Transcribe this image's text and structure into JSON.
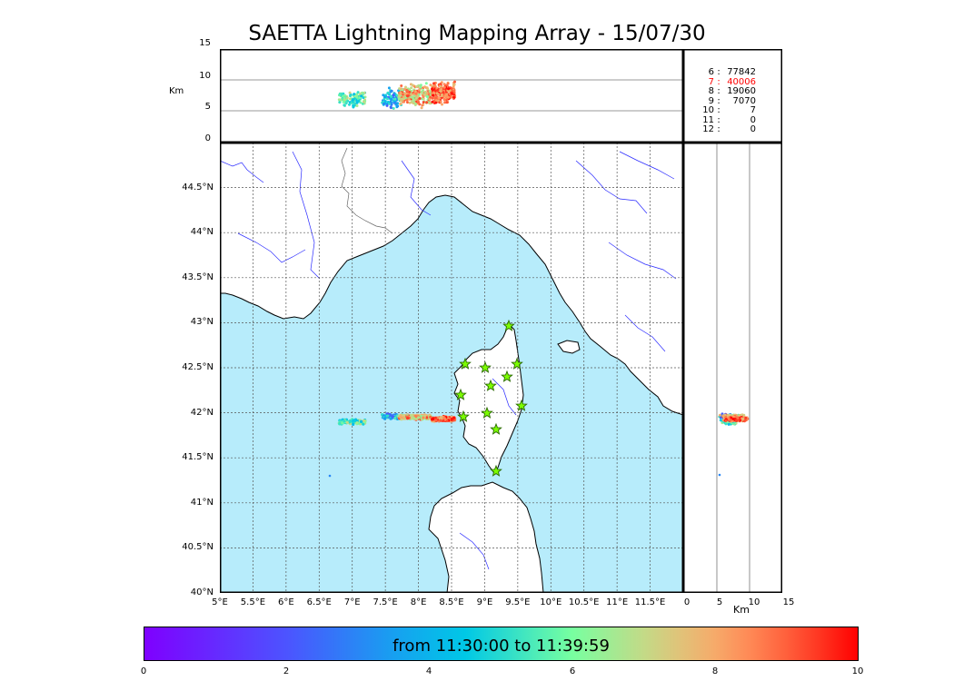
{
  "title": "SAETTA Lightning Mapping Array - 15/07/30",
  "top_panel": {
    "ylabel": "Km",
    "yticks": [
      "15",
      "10",
      "5",
      "0"
    ]
  },
  "right_panel": {
    "xlabel": "Km",
    "xticks": [
      "0",
      "5",
      "10",
      "15"
    ]
  },
  "map": {
    "lon_ticks": [
      "5°E",
      "5.5°E",
      "6°E",
      "6.5°E",
      "7°E",
      "7.5°E",
      "8°E",
      "8.5°E",
      "9°E",
      "9.5°E",
      "10°E",
      "10.5°E",
      "11°E",
      "11.5°E"
    ],
    "lat_ticks": [
      "44.5°N",
      "44°N",
      "43.5°N",
      "43°N",
      "42.5°N",
      "42°N",
      "41.5°N",
      "41°N",
      "40.5°N",
      "40°N"
    ],
    "colors": {
      "sea": "#b7ecfb",
      "land": "#ffffff",
      "river": "#2a2aff",
      "grid": "#555555",
      "station_fill": "#7cfc00",
      "station_stroke": "#2a6a00"
    },
    "stations_label": "LMA stations",
    "station_count": 12
  },
  "stats": [
    {
      "flash": "6",
      "count": "77842",
      "color": "#000000"
    },
    {
      "flash": "7",
      "count": "40006",
      "color": "#ff0000"
    },
    {
      "flash": "8",
      "count": "19060",
      "color": "#000000"
    },
    {
      "flash": "9",
      "count": "7070",
      "color": "#000000"
    },
    {
      "flash": "10",
      "count": "7",
      "color": "#000000"
    },
    {
      "flash": "11",
      "count": "0",
      "color": "#000000"
    },
    {
      "flash": "12",
      "count": "0",
      "color": "#000000"
    }
  ],
  "colorbar": {
    "label": "from 11:30:00 to 11:39:59",
    "ticks": [
      "0",
      "2",
      "4",
      "6",
      "8",
      "10"
    ],
    "colormap": "rainbow"
  }
}
